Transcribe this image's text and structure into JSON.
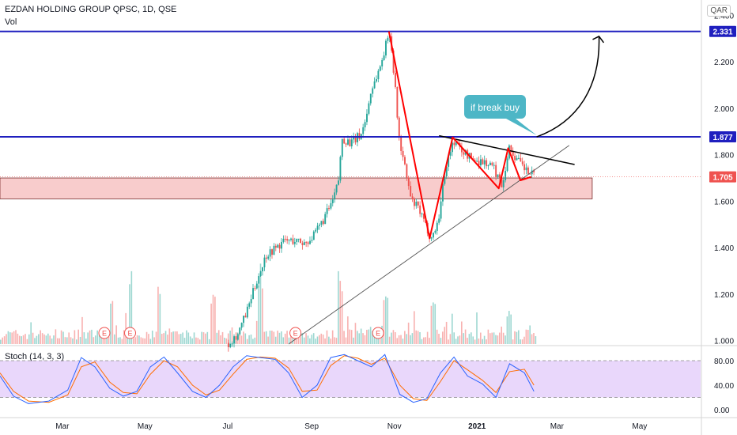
{
  "header": {
    "title": "EZDAN HOLDING GROUP QPSC, 1D, QSE",
    "volume_label": "Vol",
    "currency": "QAR"
  },
  "stoch": {
    "label": "Stoch (14, 3, 3)",
    "ticks": [
      "80.00",
      "40.00",
      "0.00"
    ],
    "tick_values": [
      80,
      40,
      0
    ]
  },
  "annotation": {
    "callout": "if break buy"
  },
  "colors": {
    "up": "#26a69a",
    "down": "#ef5350",
    "level_line": "#1f1fbf",
    "pattern": "#ff0000",
    "zone_fill": "#f7c3c3",
    "callout_bg": "#4db6c6",
    "stoch_bg": "#e9d7fb",
    "k_line": "#2962ff",
    "d_line": "#ff6d00"
  },
  "chart_data": {
    "type": "line",
    "y_ticks": [
      "2.400",
      "2.200",
      "2.000",
      "1.800",
      "1.600",
      "1.400",
      "1.200",
      "1.000"
    ],
    "y_tick_values": [
      2.4,
      2.2,
      2.0,
      1.8,
      1.6,
      1.4,
      1.2,
      1.0
    ],
    "ylim": [
      0.985,
      2.405
    ],
    "x_ticks": [
      "Mar",
      "May",
      "Jul",
      "Sep",
      "Nov",
      "2021",
      "Mar",
      "May"
    ],
    "x_tick_dates": [
      "2020-03-01",
      "2020-05-01",
      "2020-07-01",
      "2020-09-01",
      "2020-11-01",
      "2021-01-01",
      "2021-03-01",
      "2021-05-01"
    ],
    "xlim": [
      "2020-01-15",
      "2021-06-15"
    ],
    "price_labels": [
      {
        "text": "2.331",
        "value": 2.331,
        "style": "level"
      },
      {
        "text": "1.877",
        "value": 1.877,
        "style": "level"
      },
      {
        "text": "1.705",
        "value": 1.705,
        "style": "last"
      }
    ],
    "horizontal_levels": [
      2.331,
      1.877
    ],
    "support_zone": [
      1.61,
      1.7
    ],
    "earnings_markers": {
      "label": "E",
      "dates": [
        "2020-04-01",
        "2020-04-20",
        "2020-08-20",
        "2020-10-20"
      ]
    },
    "price_series": [
      [
        "2020-07-01",
        0.99
      ],
      [
        "2020-07-08",
        1.03
      ],
      [
        "2020-07-15",
        1.13
      ],
      [
        "2020-07-22",
        1.26
      ],
      [
        "2020-07-29",
        1.37
      ],
      [
        "2020-08-05",
        1.4
      ],
      [
        "2020-08-12",
        1.43
      ],
      [
        "2020-08-19",
        1.43
      ],
      [
        "2020-08-26",
        1.42
      ],
      [
        "2020-09-02",
        1.45
      ],
      [
        "2020-09-09",
        1.52
      ],
      [
        "2020-09-16",
        1.6
      ],
      [
        "2020-09-20",
        1.68
      ],
      [
        "2020-09-23",
        1.87
      ],
      [
        "2020-09-30",
        1.85
      ],
      [
        "2020-10-07",
        1.89
      ],
      [
        "2020-10-11",
        1.97
      ],
      [
        "2020-10-14",
        2.07
      ],
      [
        "2020-10-21",
        2.18
      ],
      [
        "2020-10-25",
        2.27
      ],
      [
        "2020-10-28",
        2.33
      ],
      [
        "2020-10-31",
        2.16
      ],
      [
        "2020-11-04",
        1.87
      ],
      [
        "2020-11-09",
        1.72
      ],
      [
        "2020-11-13",
        1.6
      ],
      [
        "2020-11-18",
        1.57
      ],
      [
        "2020-11-23",
        1.5
      ],
      [
        "2020-11-28",
        1.44
      ],
      [
        "2020-12-03",
        1.52
      ],
      [
        "2020-12-08",
        1.74
      ],
      [
        "2020-12-14",
        1.86
      ],
      [
        "2020-12-20",
        1.82
      ],
      [
        "2020-12-28",
        1.78
      ],
      [
        "2021-01-05",
        1.77
      ],
      [
        "2021-01-12",
        1.75
      ],
      [
        "2021-01-19",
        1.67
      ],
      [
        "2021-01-24",
        1.83
      ],
      [
        "2021-01-31",
        1.77
      ],
      [
        "2021-02-06",
        1.73
      ],
      [
        "2021-02-12",
        1.705
      ]
    ],
    "pattern_points": [
      [
        "2020-10-28",
        2.331
      ],
      [
        "2020-11-27",
        1.44
      ],
      [
        "2020-12-14",
        1.875
      ],
      [
        "2021-01-17",
        1.655
      ],
      [
        "2021-01-24",
        1.828
      ],
      [
        "2021-02-02",
        1.69
      ],
      [
        "2021-02-10",
        1.705
      ]
    ],
    "resistance_line": [
      [
        "2020-12-04",
        1.882
      ],
      [
        "2021-03-14",
        1.758
      ]
    ],
    "support_line": [
      [
        "2020-08-15",
        0.985
      ],
      [
        "2021-03-10",
        1.84
      ]
    ],
    "projection_arrow": {
      "from": [
        "2021-02-14",
        1.877
      ],
      "to": [
        "2021-04-01",
        2.31
      ]
    },
    "volume": {
      "peaks": [
        [
          "2020-04-06",
          0.55
        ],
        [
          "2020-04-20",
          0.95
        ],
        [
          "2020-05-11",
          0.7
        ],
        [
          "2020-06-20",
          0.6
        ],
        [
          "2020-07-25",
          0.72
        ],
        [
          "2020-09-22",
          0.85
        ],
        [
          "2020-10-25",
          0.6
        ],
        [
          "2020-11-29",
          0.5
        ],
        [
          "2021-01-24",
          0.45
        ]
      ]
    },
    "stoch_k": [
      [
        "2020-01-15",
        55
      ],
      [
        "2020-01-25",
        22
      ],
      [
        "2020-02-05",
        10
      ],
      [
        "2020-02-20",
        14
      ],
      [
        "2020-03-05",
        32
      ],
      [
        "2020-03-15",
        85
      ],
      [
        "2020-03-25",
        70
      ],
      [
        "2020-04-05",
        35
      ],
      [
        "2020-04-15",
        22
      ],
      [
        "2020-04-25",
        30
      ],
      [
        "2020-05-05",
        70
      ],
      [
        "2020-05-15",
        86
      ],
      [
        "2020-05-25",
        60
      ],
      [
        "2020-06-05",
        30
      ],
      [
        "2020-06-15",
        20
      ],
      [
        "2020-06-25",
        40
      ],
      [
        "2020-07-05",
        70
      ],
      [
        "2020-07-15",
        88
      ],
      [
        "2020-07-25",
        85
      ],
      [
        "2020-08-05",
        82
      ],
      [
        "2020-08-15",
        60
      ],
      [
        "2020-08-25",
        20
      ],
      [
        "2020-09-05",
        40
      ],
      [
        "2020-09-15",
        85
      ],
      [
        "2020-09-25",
        90
      ],
      [
        "2020-10-05",
        80
      ],
      [
        "2020-10-15",
        70
      ],
      [
        "2020-10-25",
        90
      ],
      [
        "2020-11-05",
        25
      ],
      [
        "2020-11-15",
        12
      ],
      [
        "2020-11-25",
        18
      ],
      [
        "2020-12-05",
        60
      ],
      [
        "2020-12-15",
        86
      ],
      [
        "2020-12-25",
        55
      ],
      [
        "2021-01-05",
        42
      ],
      [
        "2021-01-15",
        20
      ],
      [
        "2021-01-25",
        75
      ],
      [
        "2021-02-05",
        60
      ],
      [
        "2021-02-12",
        30
      ]
    ],
    "stoch_d": [
      [
        "2020-01-15",
        60
      ],
      [
        "2020-01-25",
        30
      ],
      [
        "2020-02-05",
        14
      ],
      [
        "2020-02-20",
        12
      ],
      [
        "2020-03-05",
        24
      ],
      [
        "2020-03-15",
        70
      ],
      [
        "2020-03-25",
        78
      ],
      [
        "2020-04-05",
        45
      ],
      [
        "2020-04-15",
        28
      ],
      [
        "2020-04-25",
        26
      ],
      [
        "2020-05-05",
        58
      ],
      [
        "2020-05-15",
        80
      ],
      [
        "2020-05-25",
        70
      ],
      [
        "2020-06-05",
        40
      ],
      [
        "2020-06-15",
        24
      ],
      [
        "2020-06-25",
        32
      ],
      [
        "2020-07-05",
        58
      ],
      [
        "2020-07-15",
        82
      ],
      [
        "2020-07-25",
        86
      ],
      [
        "2020-08-05",
        84
      ],
      [
        "2020-08-15",
        68
      ],
      [
        "2020-08-25",
        30
      ],
      [
        "2020-09-05",
        32
      ],
      [
        "2020-09-15",
        72
      ],
      [
        "2020-09-25",
        88
      ],
      [
        "2020-10-05",
        84
      ],
      [
        "2020-10-15",
        74
      ],
      [
        "2020-10-25",
        84
      ],
      [
        "2020-11-05",
        40
      ],
      [
        "2020-11-15",
        18
      ],
      [
        "2020-11-25",
        15
      ],
      [
        "2020-12-05",
        46
      ],
      [
        "2020-12-15",
        80
      ],
      [
        "2020-12-25",
        65
      ],
      [
        "2021-01-05",
        48
      ],
      [
        "2021-01-15",
        28
      ],
      [
        "2021-01-25",
        62
      ],
      [
        "2021-02-05",
        66
      ],
      [
        "2021-02-12",
        40
      ]
    ]
  }
}
